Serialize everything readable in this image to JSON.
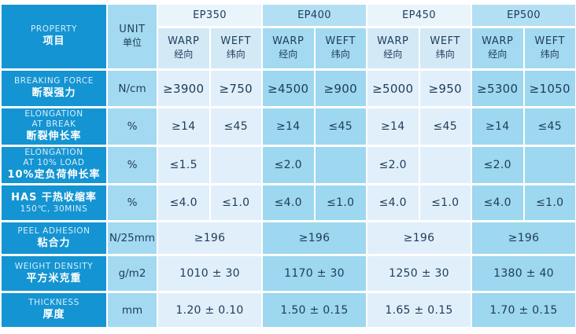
{
  "colors": {
    "primary_blue": "#1494d2",
    "medium_blue": "#a3daf1",
    "pale_blue": "#e1effa",
    "band_light": "#e9f4fb",
    "band_medium": "#b3dff4",
    "text_dark": "#1e3c5a",
    "text_on_blue": "#ffffff"
  },
  "header": {
    "property_en": "PROPERTY",
    "property_zh": "项目",
    "unit_en": "UNIT",
    "unit_zh": "单位",
    "warp_en": "WARP",
    "warp_zh": "经向",
    "weft_en": "WEFT",
    "weft_zh": "纬向",
    "grades": [
      "EP350",
      "EP400",
      "EP450",
      "EP500"
    ]
  },
  "rows": [
    {
      "en": "BREAKING FORCE",
      "zh": "断裂强力",
      "unit": "N/cm",
      "values": [
        [
          "≥3900",
          "≥750"
        ],
        [
          "≥4500",
          "≥900"
        ],
        [
          "≥5000",
          "≥950"
        ],
        [
          "≥5300",
          "≥1050"
        ]
      ]
    },
    {
      "en": "ELONGATION\nAT BREAK",
      "zh": "断裂伸长率",
      "unit": "%",
      "values": [
        [
          "≥14",
          "≤45"
        ],
        [
          "≥14",
          "≤45"
        ],
        [
          "≥14",
          "≤45"
        ],
        [
          "≥14",
          "≤45"
        ]
      ]
    },
    {
      "en": "ELONGATION\nAT 10% LOAD",
      "zh": "10%定负荷伸长率",
      "unit": "%",
      "values": [
        [
          "≤1.5",
          ""
        ],
        [
          "≤2.0",
          ""
        ],
        [
          "≤2.0",
          ""
        ],
        [
          "≤2.0",
          ""
        ]
      ]
    },
    {
      "en": "150℃, 30MINS",
      "zh": "HAS  干热收缩率",
      "unit": "%",
      "values": [
        [
          "≤4.0",
          "≤1.0"
        ],
        [
          "≤4.0",
          "≤1.0"
        ],
        [
          "≤4.0",
          "≤1.0"
        ],
        [
          "≤4.0",
          "≤1.0"
        ]
      ]
    },
    {
      "en": "PEEL ADHESION",
      "zh": "粘合力",
      "unit": "N/25mm",
      "merged_values": [
        "≥196",
        "≥196",
        "≥196",
        "≥196"
      ]
    },
    {
      "en": "WEIGHT DENSITY",
      "zh": "平方米克重",
      "unit": "g/m2",
      "merged_values": [
        "1010 ± 30",
        "1170 ± 30",
        "1250 ± 30",
        "1380 ± 40"
      ]
    },
    {
      "en": "THICKNESS",
      "zh": "厚度",
      "unit": "mm",
      "merged_values": [
        "1.20 ± 0.10",
        "1.50 ± 0.15",
        "1.65 ± 0.15",
        "1.70 ± 0.15"
      ]
    }
  ]
}
